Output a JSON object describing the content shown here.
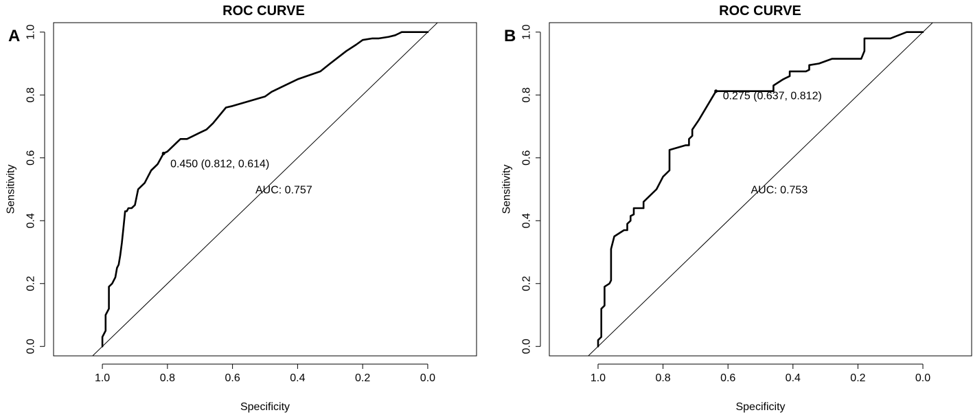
{
  "chart_data": [
    {
      "type": "line",
      "panel_label": "A",
      "title": "ROC CURVE",
      "xlabel": "Specificity",
      "ylabel": "Sensitivity",
      "xlim": [
        1.15,
        -0.15
      ],
      "ylim": [
        -0.03,
        1.03
      ],
      "x_ticks": [
        "1.0",
        "0.8",
        "0.6",
        "0.4",
        "0.2",
        "0.0"
      ],
      "y_ticks": [
        "0.0",
        "0.2",
        "0.4",
        "0.6",
        "0.8",
        "1.0"
      ],
      "x_tick_values": [
        1.0,
        0.8,
        0.6,
        0.4,
        0.2,
        0.0
      ],
      "y_tick_values": [
        0.0,
        0.2,
        0.4,
        0.6,
        0.8,
        1.0
      ],
      "series": [
        {
          "name": "ROC",
          "x": [
            1.0,
            1.0,
            0.99,
            0.99,
            0.98,
            0.98,
            0.97,
            0.96,
            0.955,
            0.95,
            0.945,
            0.94,
            0.935,
            0.93,
            0.925,
            0.92,
            0.91,
            0.9,
            0.89,
            0.88,
            0.87,
            0.86,
            0.85,
            0.84,
            0.83,
            0.812,
            0.8,
            0.78,
            0.76,
            0.74,
            0.72,
            0.7,
            0.68,
            0.66,
            0.62,
            0.6,
            0.55,
            0.5,
            0.48,
            0.45,
            0.4,
            0.33,
            0.3,
            0.25,
            0.22,
            0.2,
            0.17,
            0.15,
            0.12,
            0.1,
            0.09,
            0.08,
            0.06,
            0.0
          ],
          "y": [
            0.0,
            0.03,
            0.05,
            0.1,
            0.12,
            0.19,
            0.2,
            0.22,
            0.25,
            0.26,
            0.29,
            0.33,
            0.38,
            0.43,
            0.43,
            0.44,
            0.44,
            0.45,
            0.5,
            0.51,
            0.52,
            0.54,
            0.56,
            0.57,
            0.58,
            0.614,
            0.62,
            0.64,
            0.66,
            0.66,
            0.67,
            0.68,
            0.69,
            0.71,
            0.76,
            0.765,
            0.78,
            0.795,
            0.81,
            0.825,
            0.85,
            0.875,
            0.9,
            0.94,
            0.96,
            0.975,
            0.98,
            0.98,
            0.985,
            0.99,
            0.995,
            1.0,
            1.0,
            1.0
          ]
        }
      ],
      "threshold_point": {
        "x": 0.812,
        "y": 0.614
      },
      "threshold_label": "0.450 (0.812, 0.614)",
      "auc_label": "AUC: 0.757",
      "reference_line": [
        [
          1.0,
          0.0
        ],
        [
          0.0,
          1.0
        ]
      ]
    },
    {
      "type": "line",
      "panel_label": "B",
      "title": "ROC CURVE",
      "xlabel": "Specificity",
      "ylabel": "Sensitivity",
      "xlim": [
        1.15,
        -0.15
      ],
      "ylim": [
        -0.03,
        1.03
      ],
      "x_ticks": [
        "1.0",
        "0.8",
        "0.6",
        "0.4",
        "0.2",
        "0.0"
      ],
      "y_ticks": [
        "0.0",
        "0.2",
        "0.4",
        "0.6",
        "0.8",
        "1.0"
      ],
      "x_tick_values": [
        1.0,
        0.8,
        0.6,
        0.4,
        0.2,
        0.0
      ],
      "y_tick_values": [
        0.0,
        0.2,
        0.4,
        0.6,
        0.8,
        1.0
      ],
      "series": [
        {
          "name": "ROC",
          "x": [
            1.0,
            1.0,
            0.99,
            0.99,
            0.98,
            0.98,
            0.965,
            0.96,
            0.96,
            0.95,
            0.92,
            0.91,
            0.91,
            0.9,
            0.9,
            0.89,
            0.89,
            0.86,
            0.86,
            0.82,
            0.8,
            0.78,
            0.78,
            0.73,
            0.72,
            0.72,
            0.71,
            0.71,
            0.69,
            0.637,
            0.6,
            0.55,
            0.5,
            0.47,
            0.46,
            0.46,
            0.43,
            0.41,
            0.41,
            0.36,
            0.35,
            0.35,
            0.32,
            0.28,
            0.26,
            0.19,
            0.18,
            0.18,
            0.15,
            0.1,
            0.05,
            0.0
          ],
          "y": [
            0.0,
            0.02,
            0.03,
            0.12,
            0.13,
            0.19,
            0.2,
            0.21,
            0.31,
            0.35,
            0.37,
            0.37,
            0.39,
            0.4,
            0.415,
            0.42,
            0.44,
            0.44,
            0.46,
            0.5,
            0.54,
            0.56,
            0.625,
            0.64,
            0.64,
            0.66,
            0.67,
            0.69,
            0.72,
            0.812,
            0.812,
            0.812,
            0.812,
            0.812,
            0.812,
            0.83,
            0.85,
            0.86,
            0.875,
            0.875,
            0.88,
            0.895,
            0.9,
            0.915,
            0.915,
            0.915,
            0.94,
            0.98,
            0.98,
            0.98,
            1.0,
            1.0
          ]
        }
      ],
      "threshold_point": {
        "x": 0.637,
        "y": 0.812
      },
      "threshold_label": "0.275 (0.637, 0.812)",
      "auc_label": "AUC: 0.753",
      "reference_line": [
        [
          1.0,
          0.0
        ],
        [
          0.0,
          1.0
        ]
      ]
    }
  ]
}
